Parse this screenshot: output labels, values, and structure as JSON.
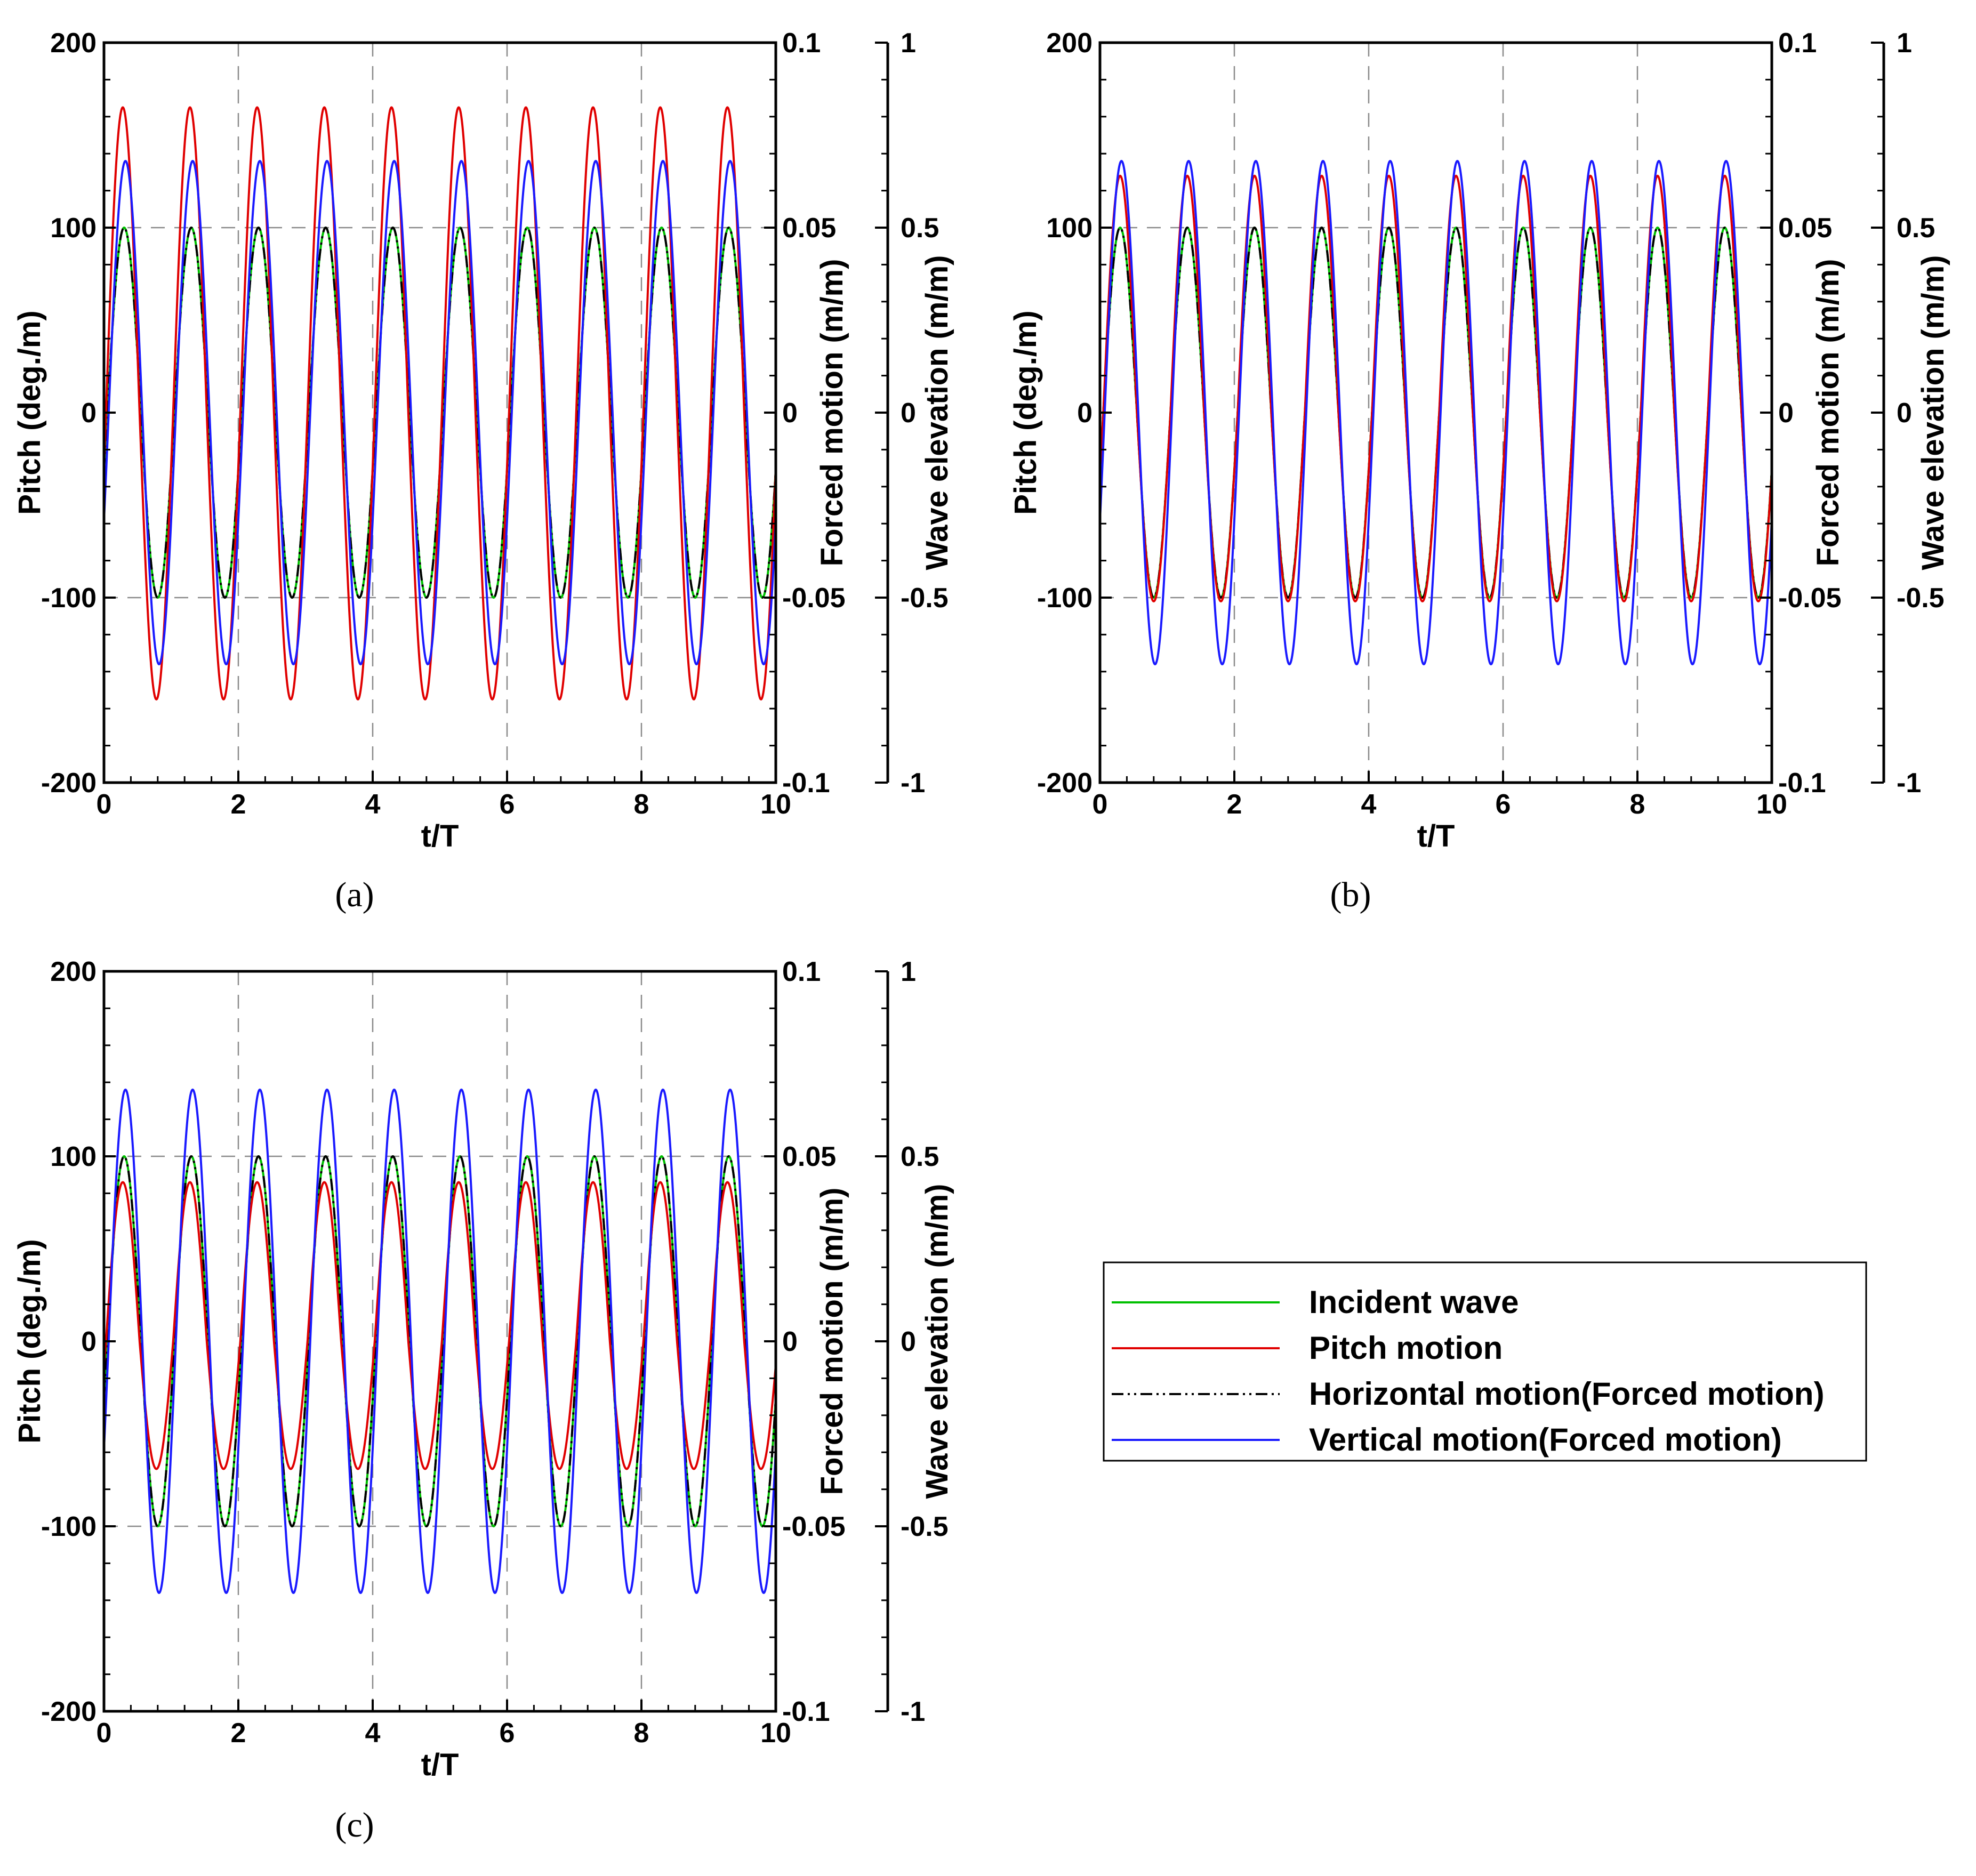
{
  "figure": {
    "panel_labels": [
      "(a)",
      "(b)",
      "(c)"
    ]
  },
  "legend": {
    "items": [
      {
        "label": "Incident wave",
        "color": "#00c000",
        "style": "solid"
      },
      {
        "label": "Pitch motion",
        "color": "#e00000",
        "style": "solid"
      },
      {
        "label": "Horizontal motion(Forced motion)",
        "color": "#000000",
        "style": "dash-dot-dot"
      },
      {
        "label": "Vertical motion(Forced motion)",
        "color": "#1a1aff",
        "style": "solid"
      }
    ]
  },
  "chart_data": [
    {
      "type": "line",
      "panel": "(a)",
      "xlabel": "t/T",
      "ylabel": "Pitch (deg./m)",
      "y2label": "Forced motion (m/m)",
      "y3label": "Wave elevation (m/m)",
      "xlim": [
        0,
        10
      ],
      "ylim": [
        -200,
        200
      ],
      "y2lim": [
        -0.1,
        0.1
      ],
      "y3lim": [
        -1,
        1
      ],
      "xticks": [
        "0",
        "2",
        "4",
        "6",
        "8",
        "10"
      ],
      "yticks": [
        "-200",
        "-100",
        "0",
        "100",
        "200"
      ],
      "y2ticks": [
        "-0.1",
        "-0.05",
        "0",
        "0.05",
        "0.1"
      ],
      "y3ticks": [
        "-1",
        "-0.5",
        "0",
        "0.5",
        "1"
      ],
      "grid": "dashed",
      "series": [
        {
          "name": "Incident wave",
          "axis": "y3",
          "form": "0.5*sin(2*pi*(t-0.05))",
          "amplitude": 0.5,
          "offset": 0,
          "peak_phase": 0.3
        },
        {
          "name": "Pitch motion",
          "axis": "y",
          "amplitude_pos": 165,
          "amplitude_neg": -155,
          "peak_phase": 0.28
        },
        {
          "name": "Horizontal motion(Forced motion)",
          "axis": "y2",
          "amplitude": 0.05,
          "offset": 0,
          "peak_phase": 0.3
        },
        {
          "name": "Vertical motion(Forced motion)",
          "axis": "y2",
          "amplitude": 0.068,
          "offset": 0,
          "peak_phase": 0.32
        }
      ]
    },
    {
      "type": "line",
      "panel": "(b)",
      "xlabel": "t/T",
      "ylabel": "Pitch (deg./m)",
      "y2label": "Forced motion (m/m)",
      "y3label": "Wave elevation (m/m)",
      "xlim": [
        0,
        10
      ],
      "ylim": [
        -200,
        200
      ],
      "y2lim": [
        -0.1,
        0.1
      ],
      "y3lim": [
        -1,
        1
      ],
      "xticks": [
        "0",
        "2",
        "4",
        "6",
        "8",
        "10"
      ],
      "yticks": [
        "-200",
        "-100",
        "0",
        "100",
        "200"
      ],
      "y2ticks": [
        "-0.1",
        "-0.05",
        "0",
        "0.05",
        "0.1"
      ],
      "y3ticks": [
        "-1",
        "-0.5",
        "0",
        "0.5",
        "1"
      ],
      "grid": "dashed",
      "series": [
        {
          "name": "Incident wave",
          "axis": "y3",
          "amplitude": 0.5,
          "offset": 0,
          "peak_phase": 0.3
        },
        {
          "name": "Pitch motion",
          "axis": "y",
          "amplitude_pos": 128,
          "amplitude_neg": -102,
          "peak_phase": 0.3
        },
        {
          "name": "Horizontal motion(Forced motion)",
          "axis": "y2",
          "amplitude": 0.05,
          "offset": 0,
          "peak_phase": 0.3
        },
        {
          "name": "Vertical motion(Forced motion)",
          "axis": "y2",
          "amplitude": 0.068,
          "offset": 0,
          "peak_phase": 0.32
        }
      ]
    },
    {
      "type": "line",
      "panel": "(c)",
      "xlabel": "t/T",
      "ylabel": "Pitch (deg./m)",
      "y2label": "Forced motion (m/m)",
      "y3label": "Wave elevation (m/m)",
      "xlim": [
        0,
        10
      ],
      "ylim": [
        -200,
        200
      ],
      "y2lim": [
        -0.1,
        0.1
      ],
      "y3lim": [
        -1,
        1
      ],
      "xticks": [
        "0",
        "2",
        "4",
        "6",
        "8",
        "10"
      ],
      "yticks": [
        "-200",
        "-100",
        "0",
        "100",
        "200"
      ],
      "y2ticks": [
        "-0.1",
        "-0.05",
        "0",
        "0.05",
        "0.1"
      ],
      "y3ticks": [
        "-1",
        "-0.5",
        "0",
        "0.5",
        "1"
      ],
      "grid": "dashed",
      "series": [
        {
          "name": "Incident wave",
          "axis": "y3",
          "amplitude": 0.5,
          "offset": 0,
          "peak_phase": 0.3
        },
        {
          "name": "Pitch motion",
          "axis": "y",
          "amplitude_pos": 86,
          "amplitude_neg": -69,
          "peak_phase": 0.28
        },
        {
          "name": "Horizontal motion(Forced motion)",
          "axis": "y2",
          "amplitude": 0.05,
          "offset": 0,
          "peak_phase": 0.3
        },
        {
          "name": "Vertical motion(Forced motion)",
          "axis": "y2",
          "amplitude": 0.068,
          "offset": 0,
          "peak_phase": 0.32
        }
      ]
    }
  ]
}
